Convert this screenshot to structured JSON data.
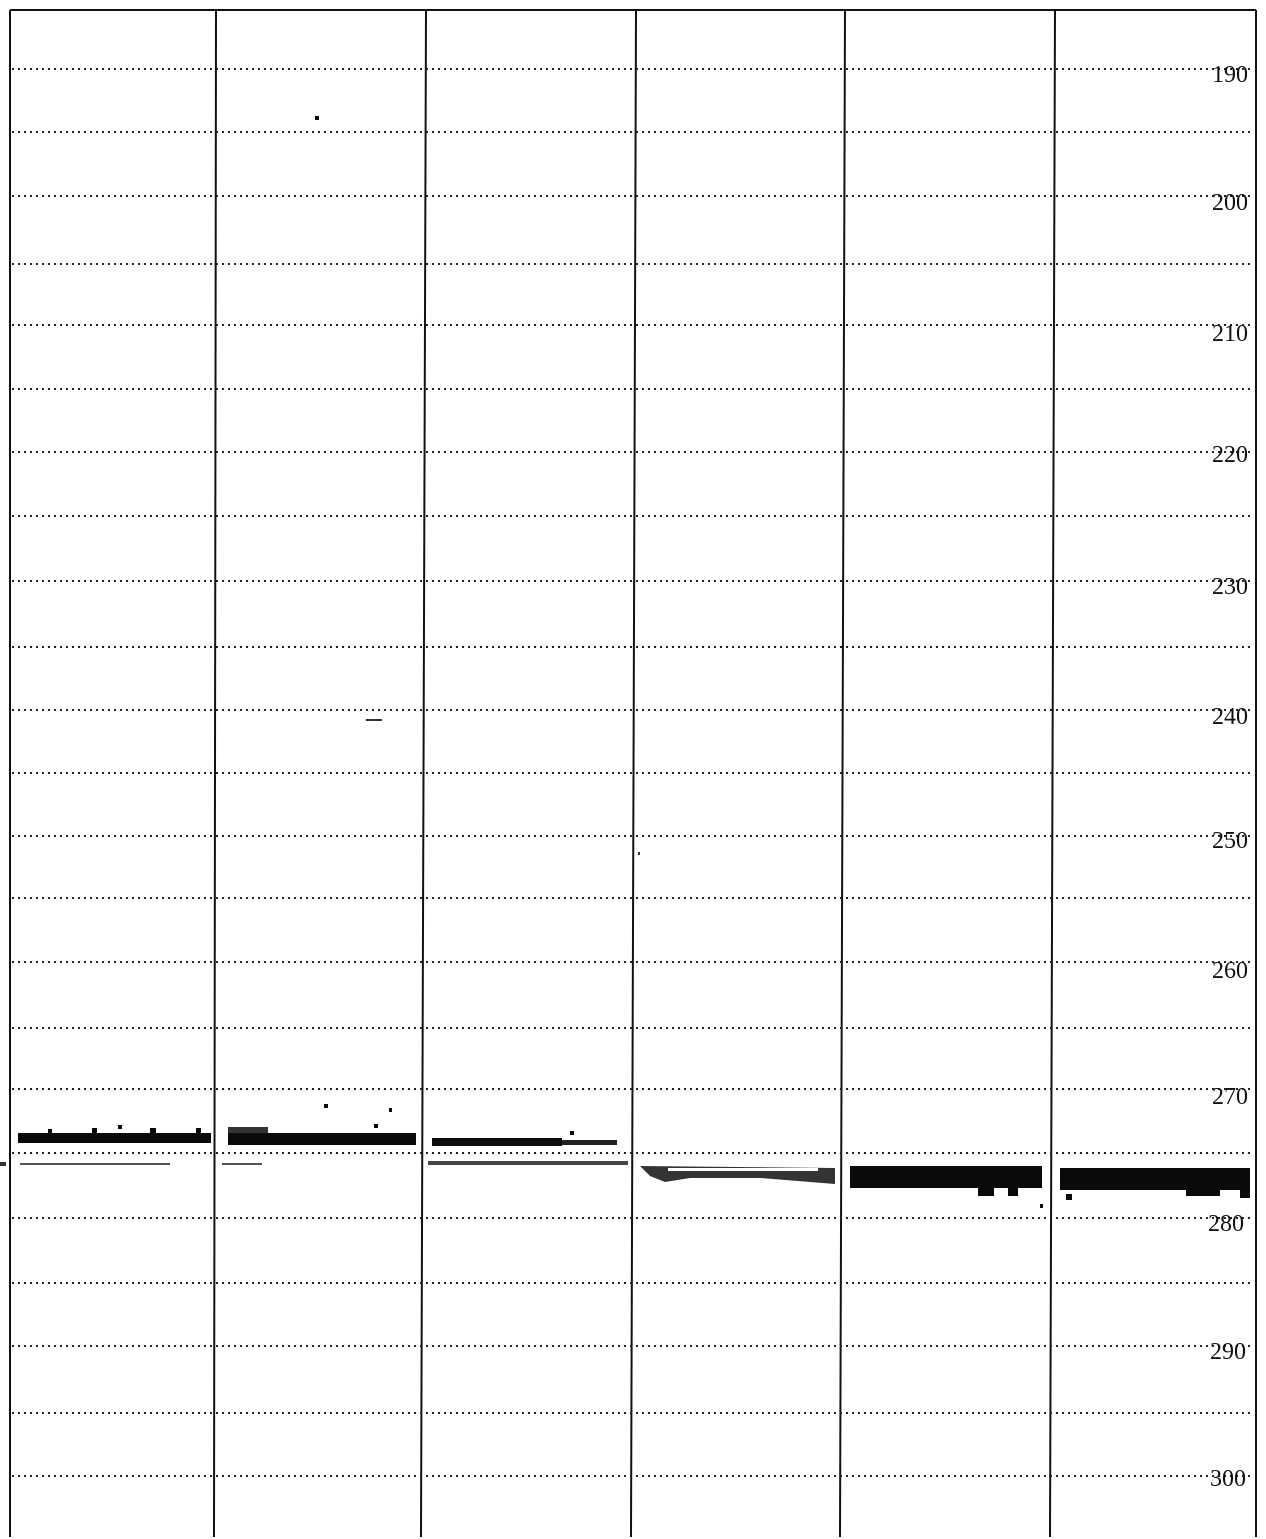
{
  "scale": {
    "labels": [
      "190",
      "200",
      "210",
      "220",
      "230",
      "240",
      "250",
      "260",
      "270",
      "280",
      "290",
      "300"
    ]
  },
  "lanes": [
    {
      "id": "lane-1",
      "band": "upper"
    },
    {
      "id": "lane-2",
      "band": "upper"
    },
    {
      "id": "lane-3",
      "band": "upper"
    },
    {
      "id": "lane-4",
      "band": "lower-faint"
    },
    {
      "id": "lane-5",
      "band": "lower"
    },
    {
      "id": "lane-6",
      "band": "lower"
    }
  ],
  "colors": {
    "ink": "#111111",
    "band": "#0a0a0a",
    "background": "#ffffff"
  }
}
